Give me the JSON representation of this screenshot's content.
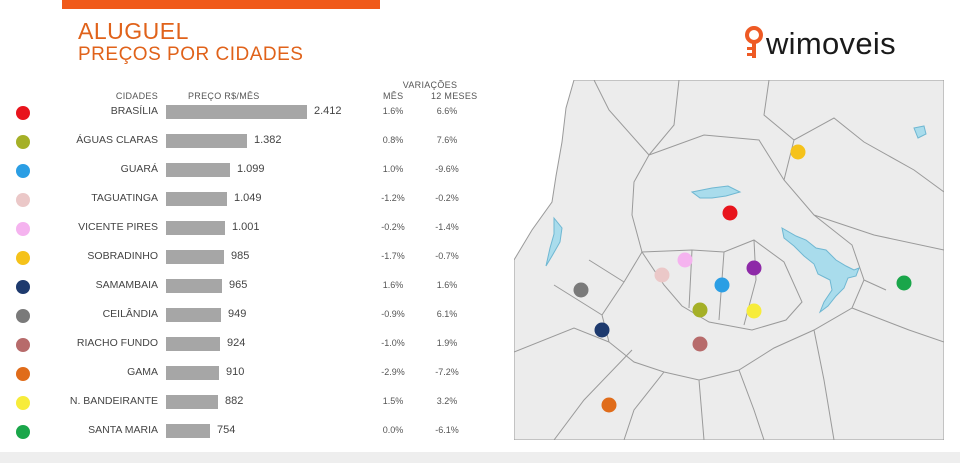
{
  "header": {
    "title": "ALUGUEL",
    "subtitle": "PREÇOS POR CIDADES",
    "accent_color": "#f05a1a",
    "title_color": "#e0621a"
  },
  "logo": {
    "text": "wimoveis",
    "icon": "location-key-icon",
    "icon_color": "#ee5a24"
  },
  "table_headers": {
    "cities": "CIDADES",
    "price": "PREÇO R$/MÊS",
    "variations": "VARIAÇÕES",
    "month": "MÊS",
    "year": "12 MESES"
  },
  "chart_data": {
    "type": "bar",
    "orientation": "horizontal",
    "title": "ALUGUEL",
    "subtitle": "PREÇOS POR CIDADES",
    "categories": [
      "BRASÍLIA",
      "ÁGUAS CLARAS",
      "GUARÁ",
      "TAGUATINGA",
      "VICENTE PIRES",
      "SOBRADINHO",
      "SAMAMBAIA",
      "CEILÂNDIA",
      "RIACHO FUNDO",
      "GAMA",
      "N. BANDEIRANTE",
      "SANTA MARIA"
    ],
    "values": [
      2412,
      1382,
      1099,
      1049,
      1001,
      985,
      965,
      949,
      924,
      910,
      882,
      754
    ],
    "value_labels": [
      "2.412",
      "1.382",
      "1.099",
      "1.049",
      "1.001",
      "985",
      "965",
      "949",
      "924",
      "910",
      "882",
      "754"
    ],
    "variation_month": [
      "1.6%",
      "0.8%",
      "1.0%",
      "-1.2%",
      "-0.2%",
      "-1.7%",
      "1.6%",
      "-0.9%",
      "-1.0%",
      "-2.9%",
      "1.5%",
      "0.0%"
    ],
    "variation_12_months": [
      "6.6%",
      "7.6%",
      "-9.6%",
      "-0.2%",
      "-1.4%",
      "-0.7%",
      "1.6%",
      "6.1%",
      "1.9%",
      "-7.2%",
      "3.2%",
      "-6.1%"
    ],
    "colors": [
      "#e8141c",
      "#a5b027",
      "#2b9ee4",
      "#ebc8c8",
      "#f5b3ef",
      "#f5c21a",
      "#1e3a6e",
      "#7a7a7a",
      "#b76b6b",
      "#e06c1a",
      "#f7ec3a",
      "#1aa64a"
    ],
    "bar_color": "#a6a6a6",
    "xlim": [
      0,
      2412
    ]
  },
  "map": {
    "lake_color": "#a9dcec",
    "markers": [
      {
        "city": "BRASÍLIA",
        "color": "#e8141c"
      },
      {
        "city": "ÁGUAS CLARAS",
        "color": "#a5b027"
      },
      {
        "city": "GUARÁ",
        "color": "#2b9ee4"
      },
      {
        "city": "TAGUATINGA",
        "color": "#ebc8c8"
      },
      {
        "city": "VICENTE PIRES",
        "color": "#f5b3ef"
      },
      {
        "city": "SOBRADINHO",
        "color": "#f5c21a"
      },
      {
        "city": "SAMAMBAIA",
        "color": "#1e3a6e"
      },
      {
        "city": "CEILÂNDIA",
        "color": "#7a7a7a"
      },
      {
        "city": "RIACHO FUNDO",
        "color": "#b76b6b"
      },
      {
        "city": "GAMA",
        "color": "#e06c1a"
      },
      {
        "city": "N. BANDEIRANTE",
        "color": "#f7ec3a"
      },
      {
        "city": "SANTA MARIA",
        "color": "#1aa64a"
      },
      {
        "city": "",
        "color": "#8e2aa8"
      }
    ]
  }
}
